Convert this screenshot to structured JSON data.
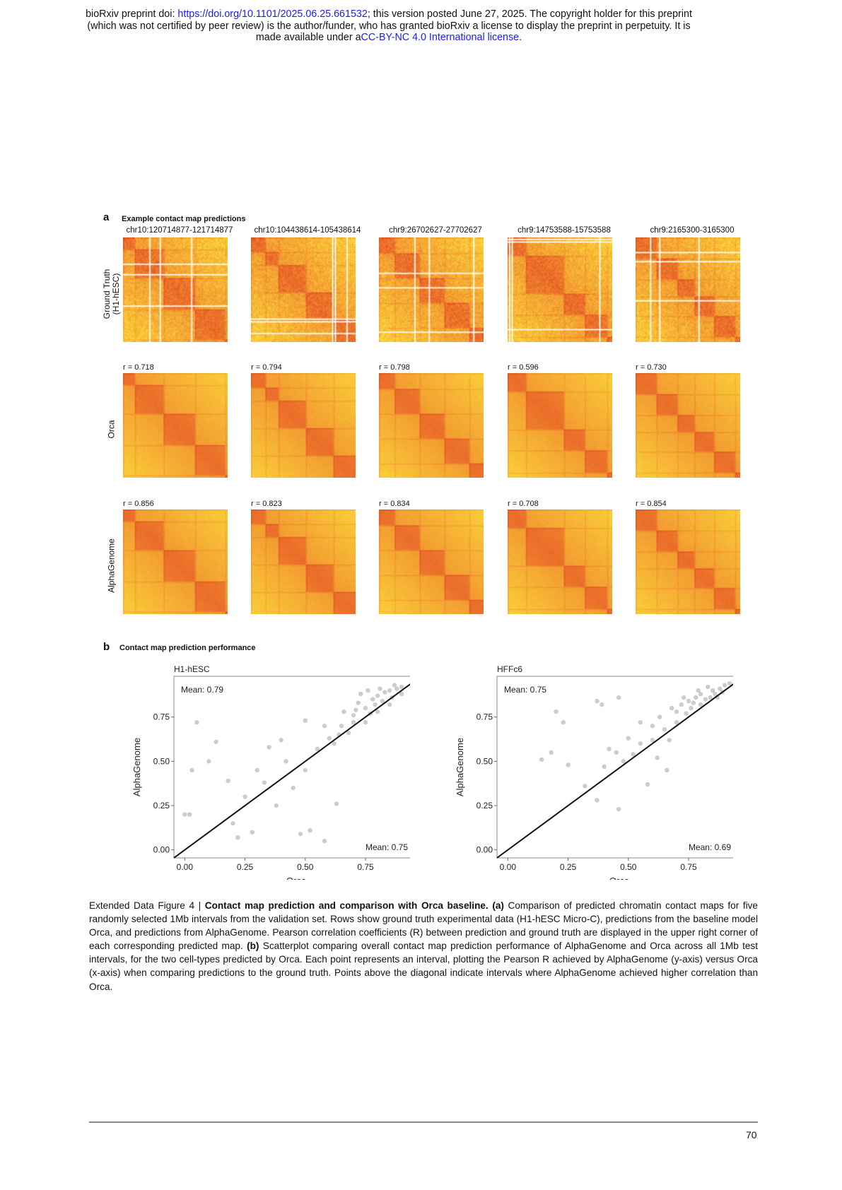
{
  "header": {
    "line1_pre": "bioRxiv preprint doi: ",
    "doi_link": "https://doi.org/10.1101/2025.06.25.661532",
    "line1_post": "; this version posted June 27, 2025. The copyright holder for this preprint",
    "line2": "(which was not certified by peer review) is the author/funder, who has granted bioRxiv a license to display the preprint in perpetuity. It is",
    "line3_pre": "made available under a",
    "license_link": "CC-BY-NC 4.0 International license",
    "line3_post": "."
  },
  "panel_a": {
    "letter": "a",
    "title": "Example contact map predictions",
    "columns": [
      "chr10:120714877-121714877",
      "chr10:104438614-105438614",
      "chr9:26702627-27702627",
      "chr9:14753588-15753588",
      "chr9:2165300-3165300"
    ],
    "rows": [
      {
        "label1": "Ground Truth",
        "label2": "(H1-hESC)",
        "r": []
      },
      {
        "label1": "Orca",
        "label2": "",
        "r": [
          "r = 0.718",
          "r = 0.794",
          "r = 0.798",
          "r = 0.596",
          "r = 0.730"
        ]
      },
      {
        "label1": "AlphaGenome",
        "label2": "",
        "r": [
          "r = 0.856",
          "r = 0.823",
          "r = 0.834",
          "r = 0.708",
          "r = 0.854"
        ]
      }
    ],
    "colors": {
      "low": "#ffe83c",
      "high": "#e23a22"
    }
  },
  "panel_b": {
    "letter": "b",
    "title": "Contact map prediction performance"
  },
  "chart_data": [
    {
      "type": "scatter",
      "title": "H1-hESC",
      "xlabel": "Orca",
      "ylabel": "AlphaGenome",
      "xlim": [
        -0.045,
        0.97
      ],
      "ylim": [
        -0.045,
        0.98
      ],
      "xticks": [
        "0.00",
        "0.25",
        "0.50",
        "0.75"
      ],
      "yticks": [
        "0.00",
        "0.25",
        "0.50",
        "0.75"
      ],
      "grid": false,
      "diagonal": true,
      "annotations": {
        "top_left": "Mean: 0.79",
        "bottom_right": "Mean: 0.75"
      },
      "point_color": "#333333",
      "points": [
        [
          0.0,
          0.2
        ],
        [
          0.02,
          0.2
        ],
        [
          0.05,
          0.72
        ],
        [
          0.03,
          0.45
        ],
        [
          0.1,
          0.5
        ],
        [
          0.13,
          0.61
        ],
        [
          0.18,
          0.39
        ],
        [
          0.2,
          0.15
        ],
        [
          0.22,
          0.07
        ],
        [
          0.28,
          0.1
        ],
        [
          0.33,
          0.38
        ],
        [
          0.35,
          0.58
        ],
        [
          0.4,
          0.62
        ],
        [
          0.45,
          0.35
        ],
        [
          0.5,
          0.73
        ],
        [
          0.48,
          0.09
        ],
        [
          0.52,
          0.11
        ],
        [
          0.58,
          0.05
        ],
        [
          0.63,
          0.26
        ],
        [
          0.55,
          0.57
        ],
        [
          0.6,
          0.63
        ],
        [
          0.65,
          0.7
        ],
        [
          0.7,
          0.76
        ],
        [
          0.72,
          0.83
        ],
        [
          0.75,
          0.8
        ],
        [
          0.78,
          0.85
        ],
        [
          0.8,
          0.87
        ],
        [
          0.82,
          0.84
        ],
        [
          0.85,
          0.9
        ],
        [
          0.88,
          0.91
        ],
        [
          0.9,
          0.92
        ],
        [
          0.68,
          0.66
        ],
        [
          0.62,
          0.6
        ],
        [
          0.7,
          0.72
        ],
        [
          0.75,
          0.72
        ],
        [
          0.8,
          0.78
        ],
        [
          0.85,
          0.82
        ],
        [
          0.76,
          0.9
        ],
        [
          0.66,
          0.78
        ],
        [
          0.58,
          0.7
        ],
        [
          0.42,
          0.5
        ],
        [
          0.3,
          0.45
        ],
        [
          0.25,
          0.3
        ],
        [
          0.38,
          0.25
        ],
        [
          0.5,
          0.45
        ],
        [
          0.73,
          0.88
        ],
        [
          0.86,
          0.86
        ],
        [
          0.83,
          0.89
        ],
        [
          0.79,
          0.82
        ],
        [
          0.71,
          0.79
        ],
        [
          0.64,
          0.65
        ],
        [
          0.9,
          0.88
        ],
        [
          0.87,
          0.93
        ],
        [
          0.81,
          0.91
        ],
        [
          0.77,
          0.77
        ]
      ]
    },
    {
      "type": "scatter",
      "title": "HFFc6",
      "xlabel": "Orca",
      "ylabel": "AlphaGenome",
      "xlim": [
        -0.045,
        0.97
      ],
      "ylim": [
        -0.045,
        0.98
      ],
      "xticks": [
        "0.00",
        "0.25",
        "0.50",
        "0.75"
      ],
      "yticks": [
        "0.00",
        "0.25",
        "0.50",
        "0.75"
      ],
      "grid": false,
      "diagonal": true,
      "annotations": {
        "top_left": "Mean: 0.75",
        "bottom_right": "Mean: 0.69"
      },
      "point_color": "#333333",
      "points": [
        [
          0.14,
          0.51
        ],
        [
          0.2,
          0.78
        ],
        [
          0.23,
          0.72
        ],
        [
          0.25,
          0.48
        ],
        [
          0.18,
          0.55
        ],
        [
          0.37,
          0.84
        ],
        [
          0.39,
          0.82
        ],
        [
          0.46,
          0.86
        ],
        [
          0.46,
          0.23
        ],
        [
          0.37,
          0.28
        ],
        [
          0.32,
          0.36
        ],
        [
          0.4,
          0.47
        ],
        [
          0.45,
          0.55
        ],
        [
          0.5,
          0.63
        ],
        [
          0.55,
          0.6
        ],
        [
          0.58,
          0.37
        ],
        [
          0.6,
          0.7
        ],
        [
          0.63,
          0.75
        ],
        [
          0.66,
          0.45
        ],
        [
          0.68,
          0.8
        ],
        [
          0.7,
          0.78
        ],
        [
          0.72,
          0.82
        ],
        [
          0.75,
          0.84
        ],
        [
          0.78,
          0.86
        ],
        [
          0.8,
          0.88
        ],
        [
          0.82,
          0.85
        ],
        [
          0.85,
          0.9
        ],
        [
          0.88,
          0.91
        ],
        [
          0.9,
          0.93
        ],
        [
          0.92,
          0.94
        ],
        [
          0.76,
          0.8
        ],
        [
          0.84,
          0.86
        ],
        [
          0.86,
          0.88
        ],
        [
          0.74,
          0.77
        ],
        [
          0.8,
          0.82
        ],
        [
          0.7,
          0.72
        ],
        [
          0.65,
          0.68
        ],
        [
          0.6,
          0.62
        ],
        [
          0.55,
          0.72
        ],
        [
          0.52,
          0.54
        ],
        [
          0.48,
          0.5
        ],
        [
          0.42,
          0.57
        ],
        [
          0.79,
          0.9
        ],
        [
          0.83,
          0.92
        ],
        [
          0.87,
          0.86
        ],
        [
          0.89,
          0.89
        ],
        [
          0.77,
          0.83
        ],
        [
          0.73,
          0.86
        ],
        [
          0.67,
          0.62
        ],
        [
          0.62,
          0.52
        ]
      ]
    }
  ],
  "caption": {
    "label": "Extended Data Figure 4 | ",
    "bold_title": "Contact map prediction and comparison with Orca baseline.",
    "a_tag": "(a)",
    "a_text": " Comparison of predicted chromatin contact maps for five randomly selected 1Mb intervals from the validation set. Rows show ground truth experimental data (H1-hESC Micro-C), predictions from the baseline model Orca, and predictions from AlphaGenome. Pearson correlation coefficients (R) between prediction and ground truth are displayed in the upper right corner of each corresponding predicted map. ",
    "b_tag": "(b)",
    "b_text": " Scatterplot comparing overall contact map prediction performance of AlphaGenome and Orca across all 1Mb test intervals, for the two cell-types predicted by Orca. Each point represents an interval, plotting the Pearson R achieved by AlphaGenome (y-axis) versus Orca (x-axis) when comparing predictions to the ground truth. Points above the diagonal indicate intervals where AlphaGenome achieved higher correlation than Orca."
  },
  "footer": {
    "page_number": "70"
  }
}
